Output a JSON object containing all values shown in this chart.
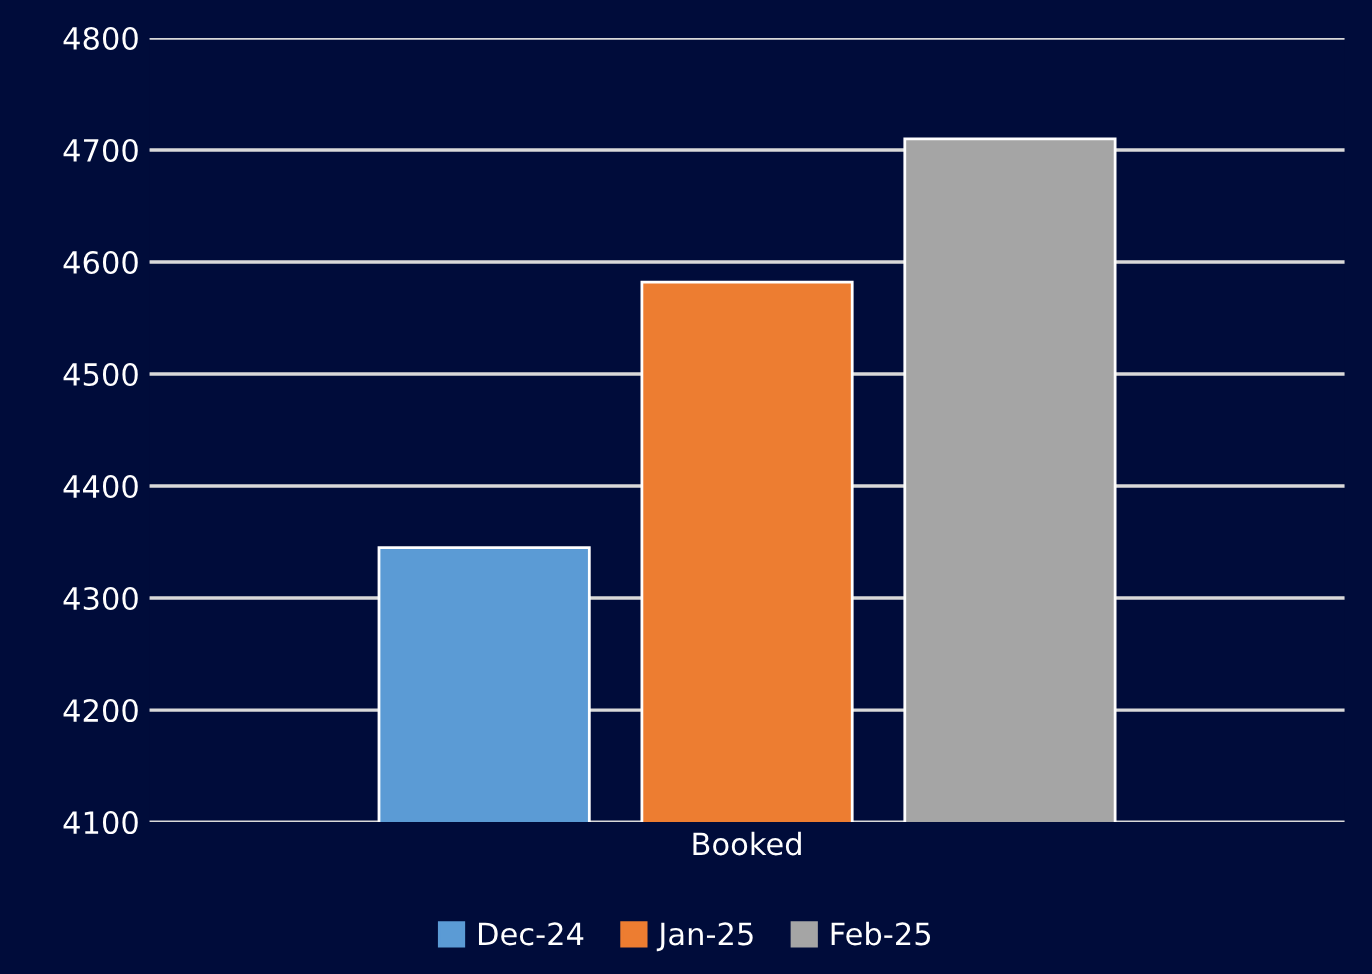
{
  "chart_data": {
    "type": "bar",
    "categories": [
      "Booked"
    ],
    "series": [
      {
        "name": "Dec-24",
        "color": "#5b9bd5",
        "values": [
          4345
        ]
      },
      {
        "name": "Jan-25",
        "color": "#ed7d31",
        "values": [
          4582
        ]
      },
      {
        "name": "Feb-25",
        "color": "#a5a5a5",
        "values": [
          4710
        ]
      }
    ],
    "ylim": [
      4100,
      4800
    ],
    "yticks": [
      4100,
      4200,
      4300,
      4400,
      4500,
      4600,
      4700,
      4800
    ],
    "grid": "y",
    "legend": "bottom"
  }
}
